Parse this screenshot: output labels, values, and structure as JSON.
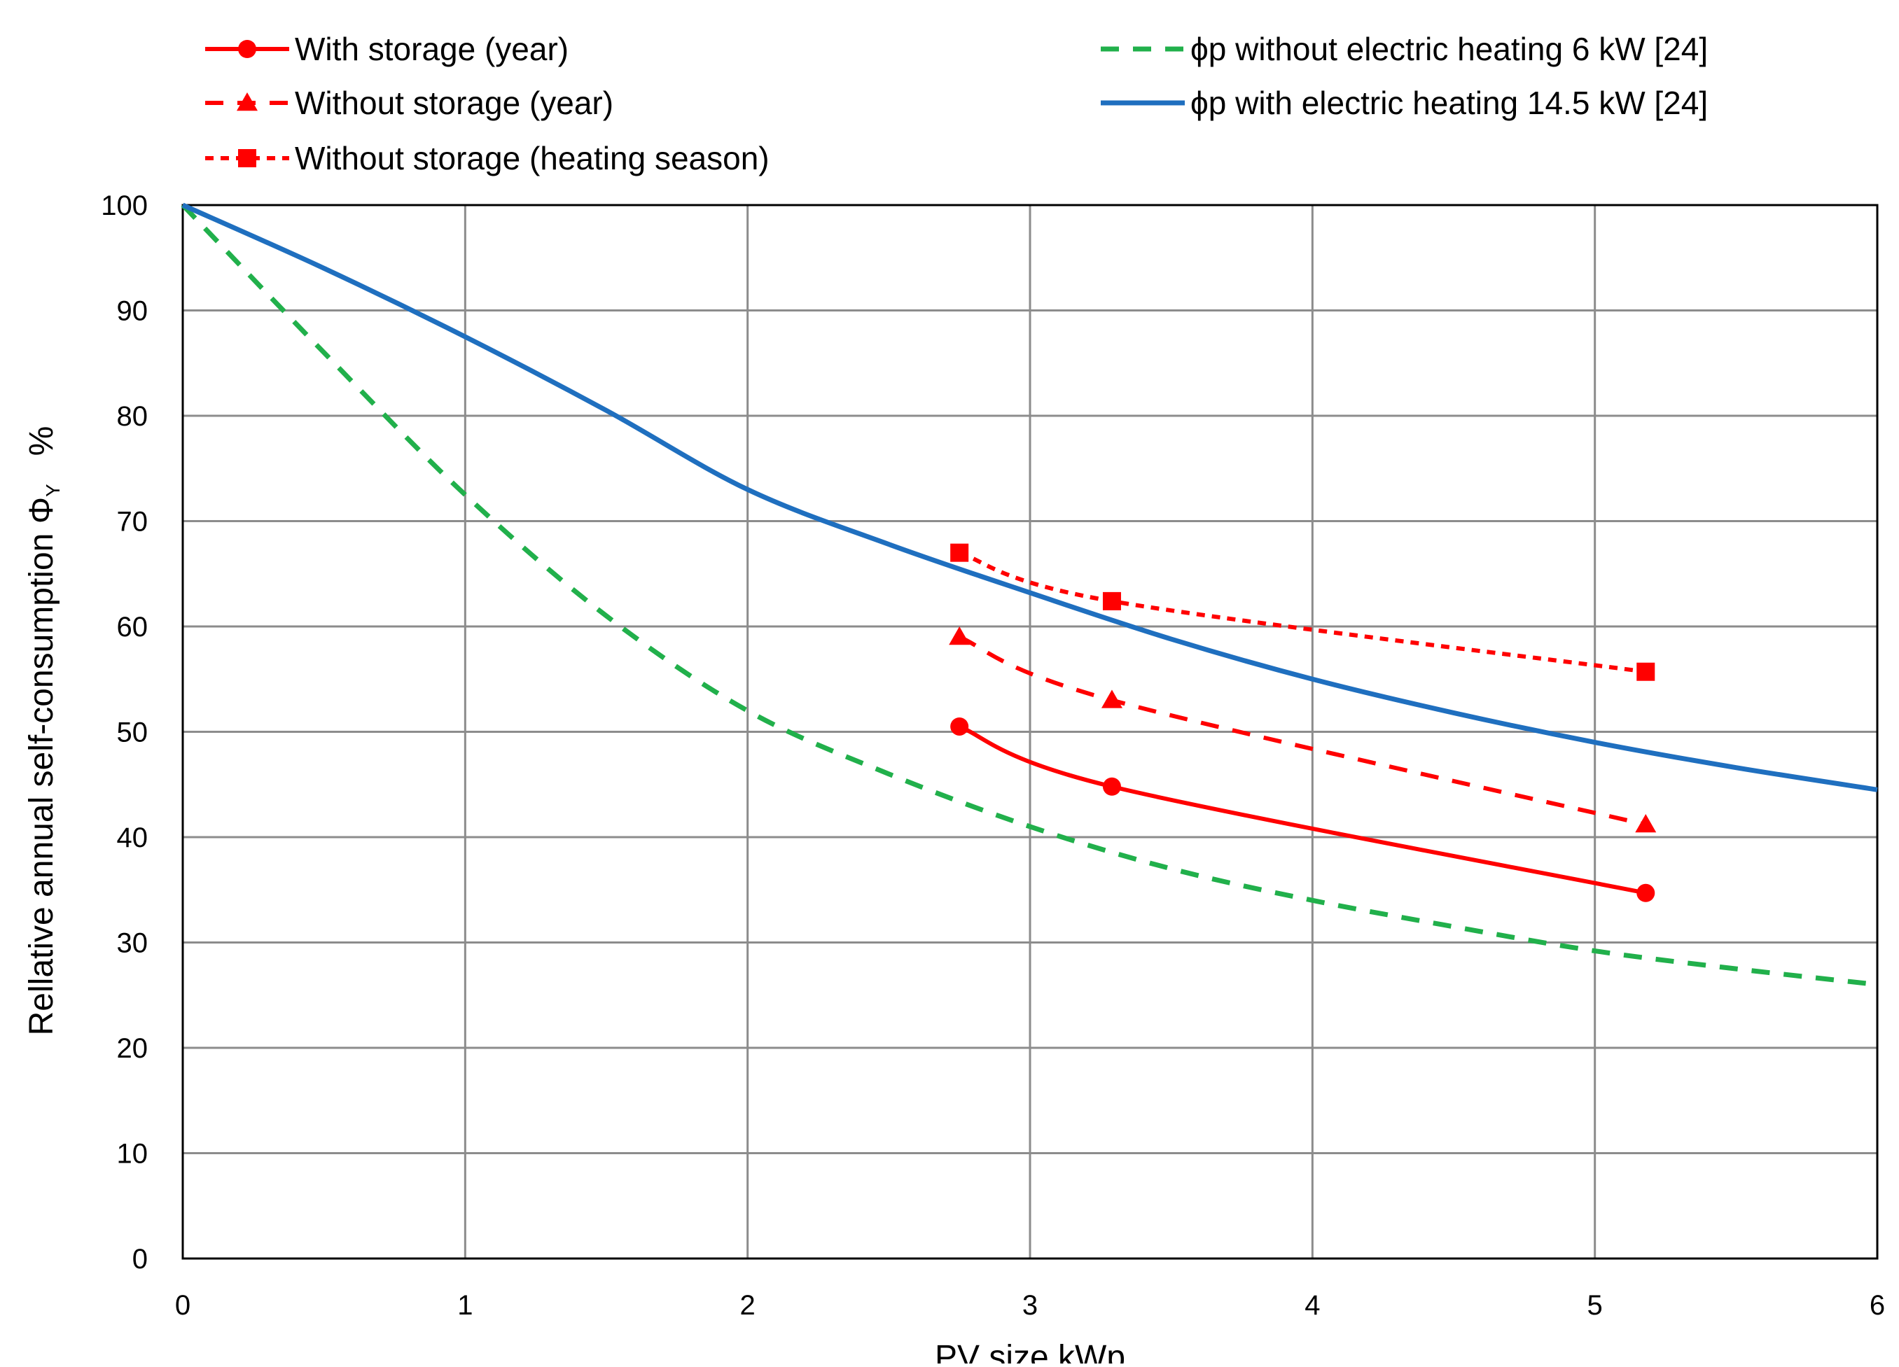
{
  "chart_data": {
    "type": "line",
    "title": "",
    "xlabel": "PV size kWp",
    "ylabel_main": "Rellative annual self-consumption Φ",
    "ylabel_subscript": "Y",
    "ylabel_unit": "%",
    "xlim": [
      0,
      6
    ],
    "ylim": [
      0,
      100
    ],
    "x_ticks": [
      0,
      1,
      2,
      3,
      4,
      5,
      6
    ],
    "y_ticks": [
      0,
      10,
      20,
      30,
      40,
      50,
      60,
      70,
      80,
      90,
      100
    ],
    "grid": true,
    "legend_position": "top",
    "series": [
      {
        "name": "With storage (year)",
        "color": "#ff0000",
        "line_style": "solid",
        "marker": "circle",
        "x": [
          2.75,
          3.29,
          5.18
        ],
        "y": [
          50.5,
          44.8,
          34.7
        ]
      },
      {
        "name": "Without storage (year)",
        "color": "#ff0000",
        "line_style": "dashed",
        "marker": "triangle",
        "x": [
          2.75,
          3.29,
          5.18
        ],
        "y": [
          59.0,
          53.0,
          41.2
        ]
      },
      {
        "name": "Without storage (heating season)",
        "color": "#ff0000",
        "line_style": "dotted",
        "marker": "square",
        "x": [
          2.75,
          3.29,
          5.18
        ],
        "y": [
          67.0,
          62.4,
          55.7
        ]
      },
      {
        "name": "ϕp  without electric heating 6 kW [24]",
        "color": "#21b04b",
        "line_style": "dashed",
        "marker": "none",
        "x": [
          0,
          0.5,
          1.0,
          1.5,
          2.0,
          2.5,
          3.0,
          3.5,
          4.0,
          4.5,
          5.0,
          5.5,
          6.0
        ],
        "y": [
          100,
          86,
          72.5,
          61,
          52,
          46,
          41,
          37,
          34,
          31.5,
          29.2,
          27.5,
          26
        ]
      },
      {
        "name": "ϕp   with electric heating 14.5 kW [24]",
        "color": "#1f6fbf",
        "line_style": "solid",
        "marker": "none",
        "x": [
          0,
          0.5,
          1.0,
          1.5,
          2.0,
          2.5,
          3.0,
          3.5,
          4.0,
          4.5,
          5.0,
          5.5,
          6.0
        ],
        "y": [
          100,
          94,
          87.5,
          80.5,
          73,
          67.8,
          63.2,
          58.8,
          55,
          51.8,
          49,
          46.6,
          44.5
        ]
      }
    ]
  }
}
